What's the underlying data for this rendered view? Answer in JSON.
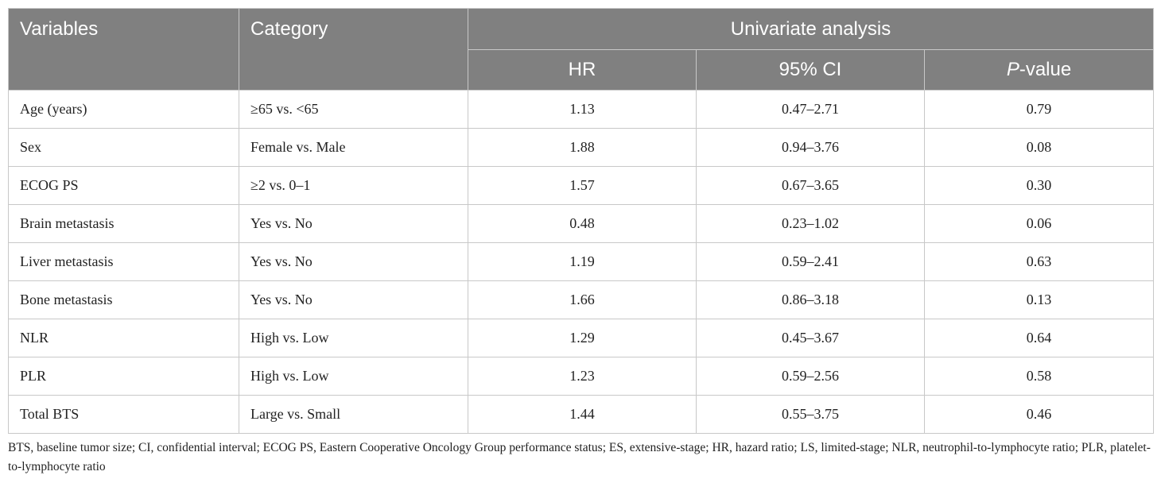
{
  "table": {
    "headers": {
      "variables": "Variables",
      "category": "Category",
      "group": "Univariate analysis",
      "hr": "HR",
      "ci": "95% CI",
      "p_prefix": "P",
      "p_suffix": "-value"
    },
    "rows": [
      {
        "variable": "Age (years)",
        "category": "≥65 vs. <65",
        "hr": "1.13",
        "ci": "0.47–2.71",
        "p": "0.79"
      },
      {
        "variable": "Sex",
        "category": "Female vs. Male",
        "hr": "1.88",
        "ci": "0.94–3.76",
        "p": "0.08"
      },
      {
        "variable": "ECOG PS",
        "category": "≥2 vs. 0–1",
        "hr": "1.57",
        "ci": "0.67–3.65",
        "p": "0.30"
      },
      {
        "variable": "Brain metastasis",
        "category": "Yes vs. No",
        "hr": "0.48",
        "ci": "0.23–1.02",
        "p": "0.06"
      },
      {
        "variable": "Liver metastasis",
        "category": "Yes vs. No",
        "hr": "1.19",
        "ci": "0.59–2.41",
        "p": "0.63"
      },
      {
        "variable": "Bone metastasis",
        "category": "Yes vs. No",
        "hr": "1.66",
        "ci": "0.86–3.18",
        "p": "0.13"
      },
      {
        "variable": "NLR",
        "category": "High vs. Low",
        "hr": "1.29",
        "ci": "0.45–3.67",
        "p": "0.64"
      },
      {
        "variable": "PLR",
        "category": "High vs. Low",
        "hr": "1.23",
        "ci": "0.59–2.56",
        "p": "0.58"
      },
      {
        "variable": "Total BTS",
        "category": "Large vs. Small",
        "hr": "1.44",
        "ci": "0.55–3.75",
        "p": "0.46"
      }
    ]
  },
  "footnote": "BTS, baseline tumor size; CI, confidential interval; ECOG PS, Eastern Cooperative Oncology Group performance status; ES, extensive-stage; HR, hazard ratio; LS, limited-stage; NLR, neutrophil-to-lymphocyte ratio; PLR, platelet-to-lymphocyte ratio",
  "colors": {
    "header_bg": "#808080",
    "header_text": "#ffffff",
    "border": "#c8c8c8"
  }
}
